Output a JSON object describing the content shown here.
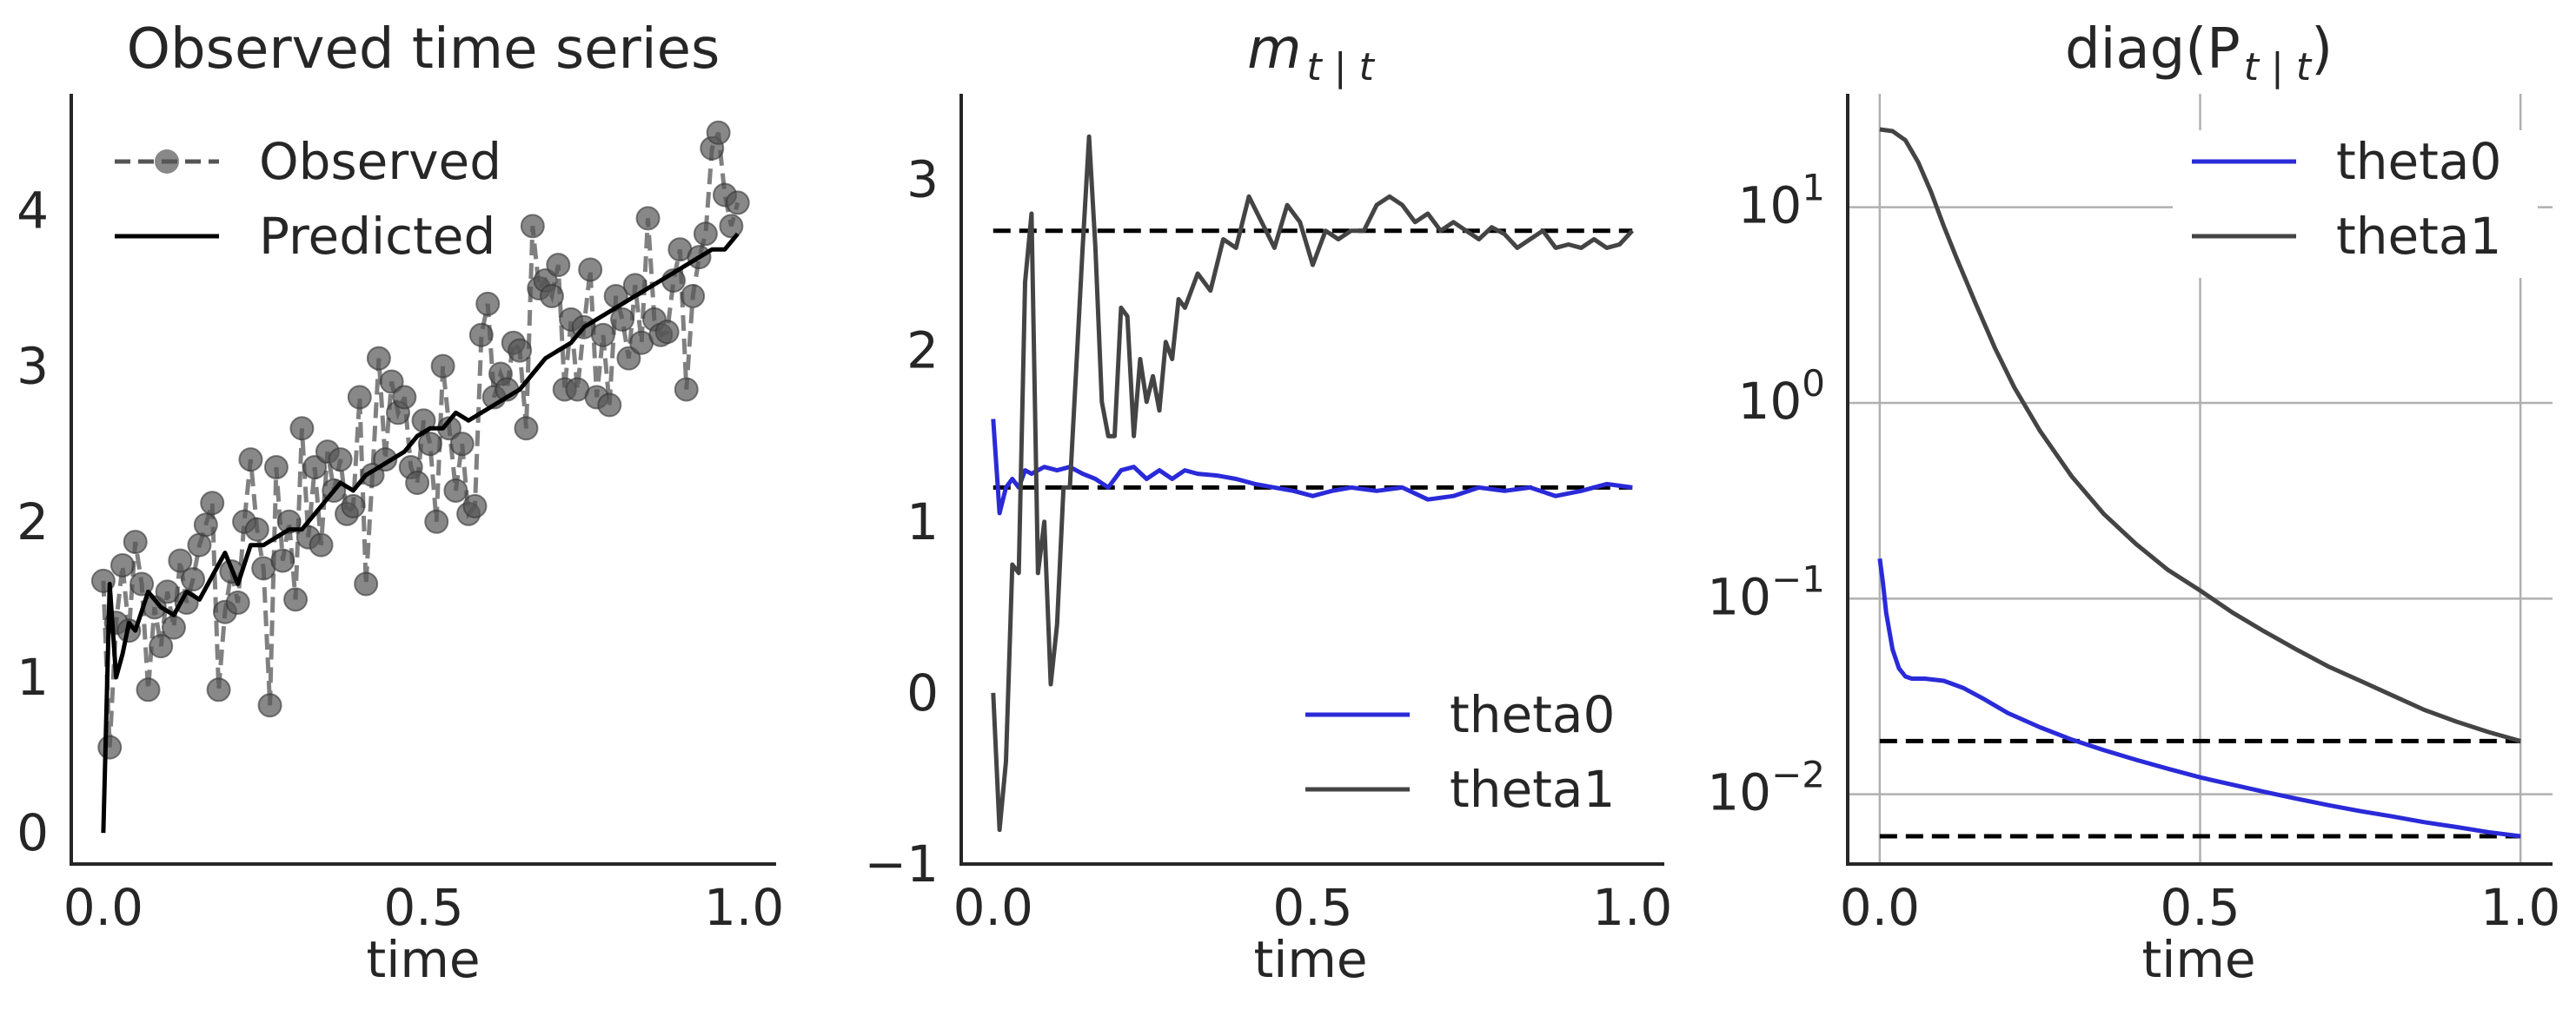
{
  "chart_data": [
    {
      "type": "line",
      "title": "Observed time series",
      "xlabel": "time",
      "ylabel": "",
      "xlim": [
        -0.05,
        1.05
      ],
      "ylim": [
        -0.2,
        4.75
      ],
      "xticks": [
        "0.0",
        "0.5",
        "1.0"
      ],
      "yticks": [
        "0",
        "1",
        "2",
        "3",
        "4"
      ],
      "grid": false,
      "legend_position": "top-left",
      "series": [
        {
          "name": "Observed",
          "style": "dashed-markers",
          "color": "#555555",
          "x": [
            0.0,
            0.01,
            0.02,
            0.03,
            0.04,
            0.05,
            0.06,
            0.07,
            0.08,
            0.09,
            0.1,
            0.11,
            0.12,
            0.13,
            0.14,
            0.15,
            0.16,
            0.17,
            0.18,
            0.19,
            0.2,
            0.21,
            0.22,
            0.23,
            0.24,
            0.25,
            0.26,
            0.27,
            0.28,
            0.29,
            0.3,
            0.31,
            0.32,
            0.33,
            0.34,
            0.35,
            0.36,
            0.37,
            0.38,
            0.39,
            0.4,
            0.41,
            0.42,
            0.43,
            0.44,
            0.45,
            0.46,
            0.47,
            0.48,
            0.49,
            0.5,
            0.51,
            0.52,
            0.53,
            0.54,
            0.55,
            0.56,
            0.57,
            0.58,
            0.59,
            0.6,
            0.61,
            0.62,
            0.63,
            0.64,
            0.65,
            0.66,
            0.67,
            0.68,
            0.69,
            0.7,
            0.71,
            0.72,
            0.73,
            0.74,
            0.75,
            0.76,
            0.77,
            0.78,
            0.79,
            0.8,
            0.81,
            0.82,
            0.83,
            0.84,
            0.85,
            0.86,
            0.87,
            0.88,
            0.89,
            0.9,
            0.91,
            0.92,
            0.93,
            0.94,
            0.95,
            0.96,
            0.97,
            0.98,
            0.99
          ],
          "values": [
            1.62,
            0.55,
            1.35,
            1.72,
            1.3,
            1.87,
            1.6,
            0.92,
            1.45,
            1.2,
            1.55,
            1.32,
            1.75,
            1.48,
            1.63,
            1.85,
            1.98,
            2.12,
            0.92,
            1.42,
            1.68,
            1.48,
            2.0,
            2.4,
            1.95,
            1.7,
            0.82,
            2.35,
            1.75,
            2.0,
            1.5,
            2.6,
            1.9,
            2.35,
            1.85,
            2.45,
            2.2,
            2.4,
            2.05,
            2.1,
            2.8,
            1.6,
            2.3,
            3.05,
            2.4,
            2.9,
            2.7,
            2.8,
            2.35,
            2.25,
            2.65,
            2.5,
            2.0,
            3.0,
            2.6,
            2.2,
            2.5,
            2.05,
            2.1,
            3.2,
            3.4,
            2.8,
            2.95,
            2.85,
            3.15,
            3.1,
            2.6,
            3.9,
            3.5,
            3.55,
            3.45,
            3.65,
            2.85,
            3.3,
            2.85,
            3.25,
            3.62,
            2.8,
            3.2,
            2.75,
            3.45,
            3.3,
            3.05,
            3.52,
            3.15,
            3.95,
            3.3,
            3.2,
            3.22,
            3.55,
            3.75,
            2.85,
            3.45,
            3.7,
            3.85,
            4.4,
            4.5,
            4.1,
            3.9,
            4.05
          ]
        },
        {
          "name": "Predicted",
          "style": "solid",
          "color": "#000000",
          "x": [
            0.0,
            0.01,
            0.02,
            0.03,
            0.04,
            0.05,
            0.07,
            0.09,
            0.11,
            0.13,
            0.15,
            0.17,
            0.19,
            0.21,
            0.23,
            0.25,
            0.27,
            0.29,
            0.31,
            0.33,
            0.35,
            0.37,
            0.39,
            0.41,
            0.43,
            0.45,
            0.47,
            0.49,
            0.51,
            0.53,
            0.55,
            0.57,
            0.59,
            0.61,
            0.63,
            0.65,
            0.67,
            0.69,
            0.71,
            0.73,
            0.75,
            0.77,
            0.79,
            0.81,
            0.83,
            0.85,
            0.87,
            0.89,
            0.91,
            0.93,
            0.95,
            0.97,
            0.99
          ],
          "values": [
            0.0,
            1.6,
            1.0,
            1.15,
            1.35,
            1.3,
            1.55,
            1.45,
            1.4,
            1.55,
            1.5,
            1.65,
            1.8,
            1.6,
            1.85,
            1.85,
            1.9,
            1.95,
            1.95,
            2.05,
            2.15,
            2.25,
            2.2,
            2.3,
            2.35,
            2.4,
            2.45,
            2.55,
            2.6,
            2.6,
            2.7,
            2.65,
            2.7,
            2.75,
            2.8,
            2.85,
            2.95,
            3.05,
            3.1,
            3.15,
            3.25,
            3.3,
            3.35,
            3.4,
            3.45,
            3.5,
            3.55,
            3.6,
            3.65,
            3.7,
            3.75,
            3.75,
            3.85
          ]
        }
      ]
    },
    {
      "type": "line",
      "title": "m_{t | t}",
      "title_main": "m",
      "title_sub": "t | t",
      "xlabel": "time",
      "ylabel": "",
      "xlim": [
        -0.05,
        1.05
      ],
      "ylim": [
        -1.0,
        3.5
      ],
      "xticks": [
        "0.0",
        "0.5",
        "1.0"
      ],
      "yticks": [
        "−1",
        "0",
        "1",
        "2",
        "3"
      ],
      "grid": false,
      "legend_position": "bottom-right",
      "reference_lines": [
        2.7,
        1.2
      ],
      "series": [
        {
          "name": "theta0",
          "color": "#2a2ad9",
          "x": [
            0.0,
            0.01,
            0.02,
            0.03,
            0.04,
            0.05,
            0.06,
            0.08,
            0.1,
            0.12,
            0.14,
            0.16,
            0.18,
            0.2,
            0.22,
            0.24,
            0.26,
            0.28,
            0.3,
            0.32,
            0.35,
            0.38,
            0.41,
            0.44,
            0.47,
            0.5,
            0.53,
            0.56,
            0.6,
            0.64,
            0.68,
            0.72,
            0.76,
            0.8,
            0.84,
            0.88,
            0.92,
            0.96,
            1.0
          ],
          "values": [
            1.6,
            1.05,
            1.2,
            1.25,
            1.2,
            1.3,
            1.28,
            1.32,
            1.3,
            1.32,
            1.28,
            1.25,
            1.2,
            1.3,
            1.32,
            1.25,
            1.3,
            1.25,
            1.3,
            1.28,
            1.27,
            1.25,
            1.22,
            1.2,
            1.18,
            1.15,
            1.18,
            1.2,
            1.18,
            1.2,
            1.13,
            1.15,
            1.2,
            1.18,
            1.2,
            1.15,
            1.18,
            1.22,
            1.2
          ]
        },
        {
          "name": "theta1",
          "color": "#444444",
          "x": [
            0.0,
            0.01,
            0.02,
            0.03,
            0.04,
            0.05,
            0.06,
            0.07,
            0.08,
            0.09,
            0.1,
            0.11,
            0.12,
            0.13,
            0.14,
            0.15,
            0.16,
            0.17,
            0.18,
            0.19,
            0.2,
            0.21,
            0.22,
            0.23,
            0.24,
            0.25,
            0.26,
            0.27,
            0.28,
            0.29,
            0.3,
            0.32,
            0.34,
            0.36,
            0.38,
            0.4,
            0.42,
            0.44,
            0.46,
            0.48,
            0.5,
            0.52,
            0.54,
            0.56,
            0.58,
            0.6,
            0.62,
            0.64,
            0.66,
            0.68,
            0.7,
            0.72,
            0.74,
            0.76,
            0.78,
            0.8,
            0.82,
            0.84,
            0.86,
            0.88,
            0.9,
            0.92,
            0.94,
            0.96,
            0.98,
            1.0
          ],
          "values": [
            0.0,
            -0.8,
            -0.4,
            0.75,
            0.7,
            2.4,
            2.8,
            0.7,
            1.0,
            0.05,
            0.4,
            1.2,
            1.2,
            1.9,
            2.6,
            3.25,
            2.6,
            1.7,
            1.5,
            1.5,
            2.25,
            2.2,
            1.5,
            1.95,
            1.7,
            1.85,
            1.65,
            2.05,
            1.95,
            2.3,
            2.25,
            2.45,
            2.35,
            2.65,
            2.6,
            2.9,
            2.75,
            2.6,
            2.85,
            2.75,
            2.5,
            2.7,
            2.65,
            2.7,
            2.7,
            2.85,
            2.9,
            2.85,
            2.75,
            2.8,
            2.7,
            2.75,
            2.7,
            2.65,
            2.72,
            2.68,
            2.6,
            2.65,
            2.7,
            2.6,
            2.62,
            2.6,
            2.65,
            2.6,
            2.62,
            2.7
          ]
        }
      ]
    },
    {
      "type": "line",
      "title": "diag(P_{t | t})",
      "title_main": "diag(P",
      "title_sub": "t | t",
      "title_end": ")",
      "xlabel": "time",
      "ylabel": "",
      "yscale": "log",
      "xlim": [
        -0.05,
        1.05
      ],
      "ylim": [
        0.0044,
        38
      ],
      "xticks": [
        "0.0",
        "0.5",
        "1.0"
      ],
      "yticks": [
        "10^-2",
        "10^-1",
        "10^0",
        "10^1"
      ],
      "grid": true,
      "legend_position": "top-right",
      "reference_lines": [
        0.0187,
        0.0061
      ],
      "series": [
        {
          "name": "theta0",
          "color": "#2a2ad9",
          "x": [
            0.0,
            0.005,
            0.01,
            0.02,
            0.03,
            0.04,
            0.05,
            0.07,
            0.1,
            0.13,
            0.16,
            0.2,
            0.25,
            0.3,
            0.35,
            0.4,
            0.45,
            0.5,
            0.55,
            0.6,
            0.65,
            0.7,
            0.75,
            0.8,
            0.85,
            0.9,
            0.95,
            1.0
          ],
          "values": [
            0.16,
            0.12,
            0.085,
            0.055,
            0.044,
            0.04,
            0.039,
            0.039,
            0.038,
            0.035,
            0.031,
            0.026,
            0.022,
            0.019,
            0.0168,
            0.015,
            0.0135,
            0.0122,
            0.0112,
            0.0103,
            0.0095,
            0.0088,
            0.0082,
            0.0077,
            0.0072,
            0.0068,
            0.0064,
            0.0061
          ]
        },
        {
          "name": "theta1",
          "color": "#444444",
          "x": [
            0.0,
            0.02,
            0.04,
            0.06,
            0.08,
            0.1,
            0.12,
            0.15,
            0.18,
            0.21,
            0.25,
            0.3,
            0.35,
            0.4,
            0.45,
            0.5,
            0.55,
            0.6,
            0.65,
            0.7,
            0.75,
            0.8,
            0.85,
            0.9,
            0.95,
            1.0
          ],
          "values": [
            25,
            24.5,
            22,
            17,
            12,
            8,
            5.5,
            3.2,
            1.9,
            1.2,
            0.72,
            0.42,
            0.27,
            0.19,
            0.14,
            0.11,
            0.085,
            0.068,
            0.055,
            0.045,
            0.038,
            0.032,
            0.027,
            0.0235,
            0.0208,
            0.0187
          ]
        }
      ]
    }
  ]
}
